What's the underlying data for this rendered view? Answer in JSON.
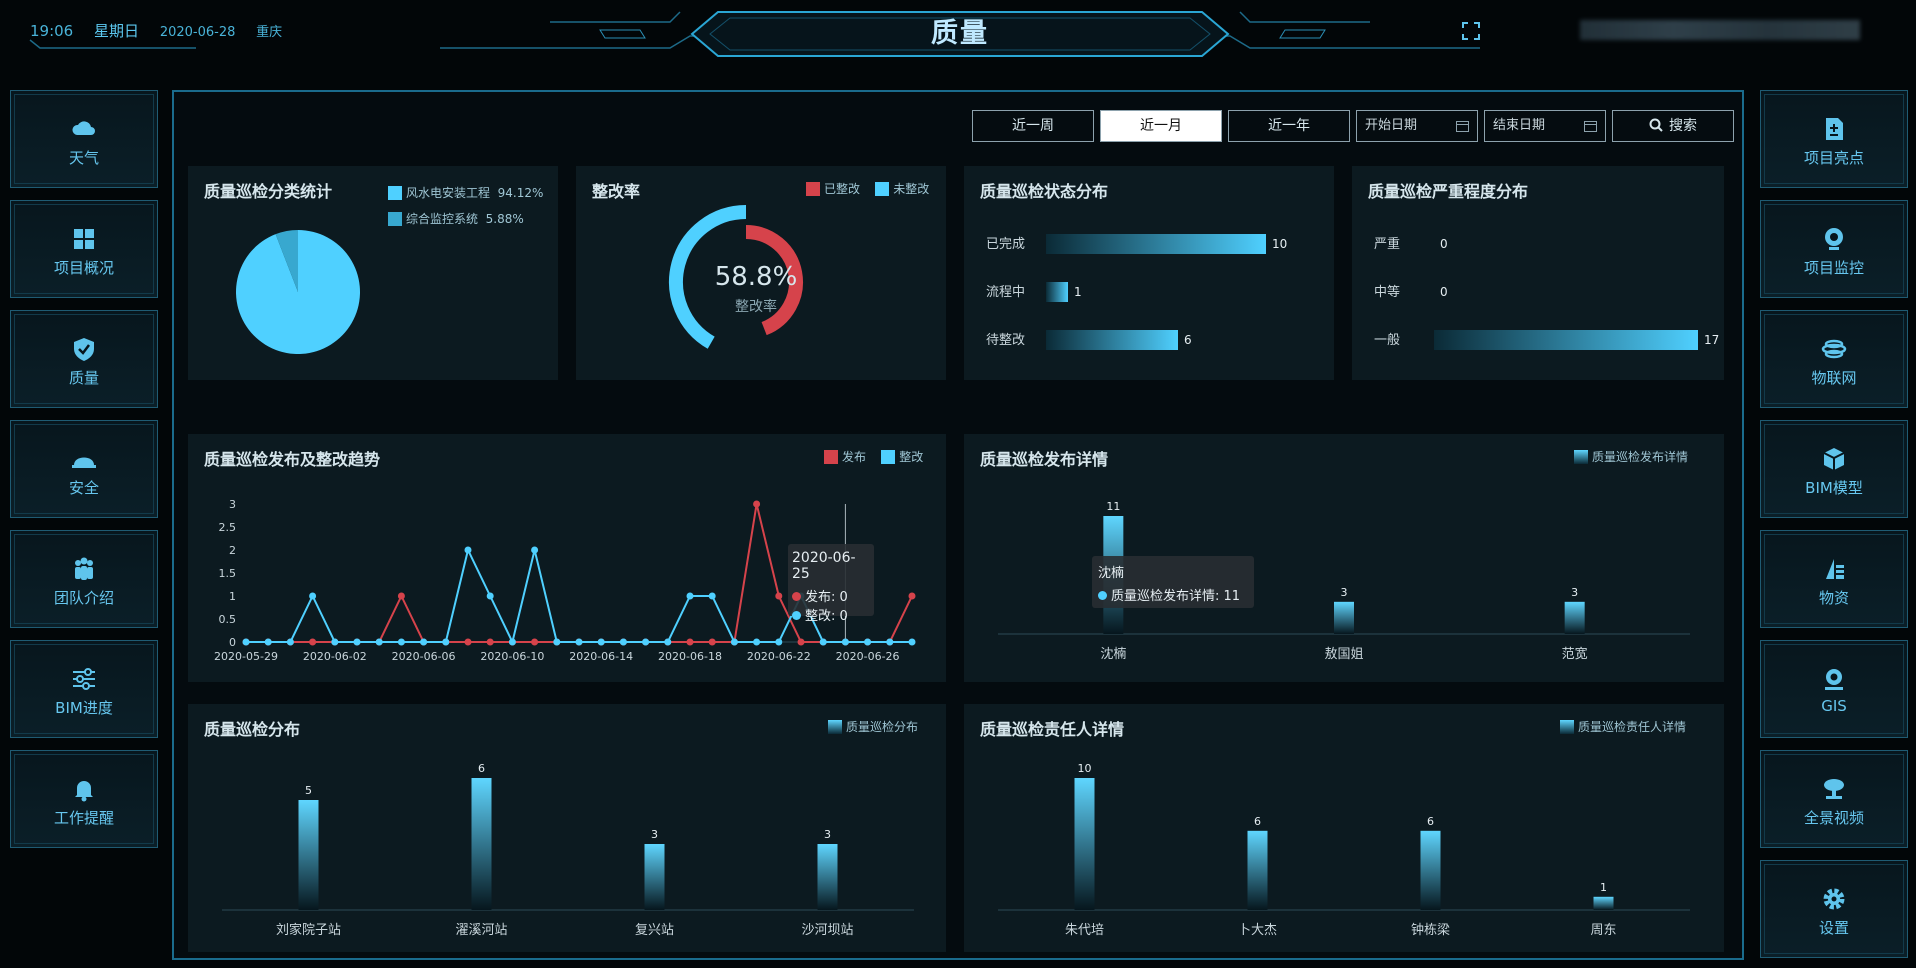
{
  "header": {
    "time": "19:06",
    "weekday": "星期日",
    "date": "2020-06-28",
    "city": "重庆",
    "title": "质量"
  },
  "left_nav": [
    {
      "label": "天气",
      "icon": "cloud-icon"
    },
    {
      "label": "项目概况",
      "icon": "grid-icon"
    },
    {
      "label": "质量",
      "icon": "shield-check-icon"
    },
    {
      "label": "安全",
      "icon": "helmet-icon"
    },
    {
      "label": "团队介绍",
      "icon": "team-icon"
    },
    {
      "label": "BIM进度",
      "icon": "sliders-icon"
    },
    {
      "label": "工作提醒",
      "icon": "bell-icon"
    }
  ],
  "right_nav": [
    {
      "label": "项目亮点",
      "icon": "document-plus-icon"
    },
    {
      "label": "项目监控",
      "icon": "webcam-icon"
    },
    {
      "label": "物联网",
      "icon": "globe-icon"
    },
    {
      "label": "BIM模型",
      "icon": "cube-icon"
    },
    {
      "label": "物资",
      "icon": "materials-icon"
    },
    {
      "label": "GIS",
      "icon": "location-icon"
    },
    {
      "label": "全景视频",
      "icon": "panorama-icon"
    },
    {
      "label": "设置",
      "icon": "gear-icon"
    }
  ],
  "toolbar": {
    "week": "近一周",
    "month": "近一月",
    "year": "近一年",
    "start_placeholder": "开始日期",
    "end_placeholder": "结束日期",
    "search": "搜索",
    "active": "近一月"
  },
  "colors": {
    "cyan": "#4fd0ff",
    "red": "#d6434b",
    "accent": "#1a6b8c"
  },
  "panels": {
    "category": {
      "title": "质量巡检分类统计",
      "legend": [
        {
          "name": "风水电安装工程",
          "pct": "94.12%"
        },
        {
          "name": "综合监控系统",
          "pct": "5.88%"
        }
      ]
    },
    "rate": {
      "title": "整改率",
      "legend": [
        "已整改",
        "未整改"
      ],
      "value": "58.8%",
      "label": "整改率"
    },
    "status": {
      "title": "质量巡检状态分布"
    },
    "severity": {
      "title": "质量巡检严重程度分布"
    },
    "trend": {
      "title": "质量巡检发布及整改趋势",
      "legend": [
        "发布",
        "整改"
      ],
      "tooltip": {
        "date": "2020-06-25",
        "publish": "发布: 0",
        "rectify": "整改: 0"
      }
    },
    "publish_detail": {
      "title": "质量巡检发布详情",
      "legend": "质量巡检发布详情",
      "tooltip": {
        "name": "沈楠",
        "line": "质量巡检发布详情: 11"
      }
    },
    "distribution": {
      "title": "质量巡检分布",
      "legend": "质量巡检分布"
    },
    "responsible": {
      "title": "质量巡检责任人详情",
      "legend": "质量巡检责任人详情"
    }
  },
  "chart_data": [
    {
      "type": "pie",
      "title": "质量巡检分类统计",
      "categories": [
        "风水电安装工程",
        "综合监控系统"
      ],
      "values": [
        94.12,
        5.88
      ]
    },
    {
      "type": "pie",
      "title": "整改率",
      "categories": [
        "已整改",
        "未整改"
      ],
      "values": [
        58.8,
        41.2
      ]
    },
    {
      "type": "bar",
      "title": "质量巡检状态分布",
      "categories": [
        "已完成",
        "流程中",
        "待整改"
      ],
      "values": [
        10,
        1,
        6
      ]
    },
    {
      "type": "bar",
      "title": "质量巡检严重程度分布",
      "categories": [
        "严重",
        "中等",
        "一般"
      ],
      "values": [
        0,
        0,
        17
      ]
    },
    {
      "type": "line",
      "title": "质量巡检发布及整改趋势",
      "x": [
        "2020-05-29",
        "2020-05-30",
        "2020-05-31",
        "2020-06-01",
        "2020-06-02",
        "2020-06-03",
        "2020-06-04",
        "2020-06-05",
        "2020-06-06",
        "2020-06-07",
        "2020-06-08",
        "2020-06-09",
        "2020-06-10",
        "2020-06-11",
        "2020-06-12",
        "2020-06-13",
        "2020-06-14",
        "2020-06-15",
        "2020-06-16",
        "2020-06-17",
        "2020-06-18",
        "2020-06-19",
        "2020-06-20",
        "2020-06-21",
        "2020-06-22",
        "2020-06-23",
        "2020-06-24",
        "2020-06-25",
        "2020-06-26",
        "2020-06-27",
        "2020-06-28"
      ],
      "xticks": [
        "2020-05-29",
        "2020-06-02",
        "2020-06-06",
        "2020-06-10",
        "2020-06-14",
        "2020-06-18",
        "2020-06-22",
        "2020-06-26"
      ],
      "yticks": [
        "0",
        "0.5",
        "1",
        "1.5",
        "2",
        "2.5",
        "3"
      ],
      "ylim": [
        0,
        3
      ],
      "series": [
        {
          "name": "发布",
          "values": [
            0,
            0,
            0,
            0,
            0,
            0,
            0,
            1,
            0,
            0,
            0,
            0,
            0,
            0,
            0,
            0,
            0,
            0,
            0,
            0,
            0,
            0,
            0,
            3,
            1,
            0,
            0,
            0,
            0,
            0,
            1
          ]
        },
        {
          "name": "整改",
          "values": [
            0,
            0,
            0,
            1,
            0,
            0,
            0,
            0,
            0,
            0,
            2,
            1,
            0,
            2,
            0,
            0,
            0,
            0,
            0,
            0,
            1,
            1,
            0,
            0,
            0,
            1,
            0,
            0,
            0,
            0,
            0
          ]
        }
      ]
    },
    {
      "type": "bar",
      "title": "质量巡检发布详情",
      "categories": [
        "沈楠",
        "敖国姐",
        "范宽"
      ],
      "values": [
        11,
        3,
        3
      ]
    },
    {
      "type": "bar",
      "title": "质量巡检分布",
      "categories": [
        "刘家院子站",
        "濯溪河站",
        "复兴站",
        "沙河坝站"
      ],
      "values": [
        5,
        6,
        3,
        3
      ]
    },
    {
      "type": "bar",
      "title": "质量巡检责任人详情",
      "categories": [
        "朱代培",
        "卜大杰",
        "钟栋梁",
        "周东"
      ],
      "values": [
        10,
        6,
        6,
        1
      ]
    }
  ]
}
